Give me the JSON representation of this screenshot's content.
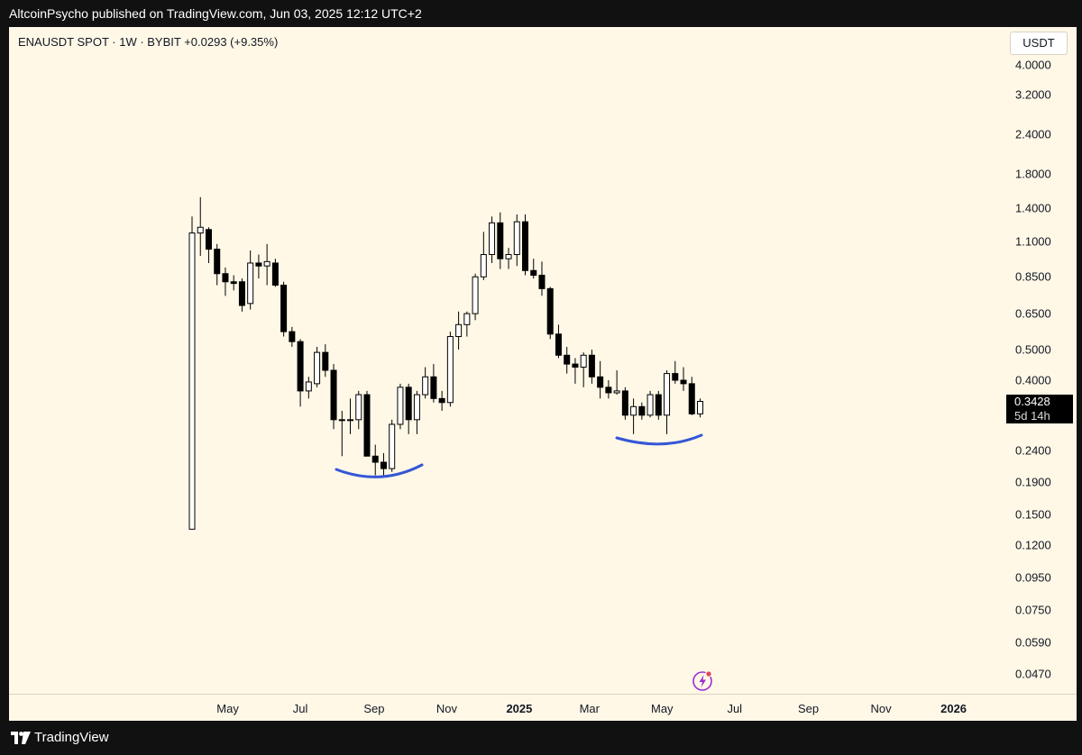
{
  "header": {
    "published": "AltcoinPsycho published on TradingView.com, Jun 03, 2025 12:12 UTC+2"
  },
  "legend": {
    "text": "ENAUSDT SPOT · 1W · BYBIT  +0.0293 (+9.35%)"
  },
  "price_axis": {
    "currency": "USDT"
  },
  "last_price": {
    "value": "0.3428",
    "countdown": "5d 14h"
  },
  "footer": {
    "brand": "TradingView"
  },
  "colors": {
    "background": "#fff8e7",
    "up_candle_fill": "#ffffff",
    "down_candle_fill": "#000000",
    "candle_outline": "#000000",
    "drawing": "#3557d6",
    "accent": "#9b2fd6"
  },
  "chart_data": {
    "type": "candlestick",
    "title": "ENAUSDT SPOT · 1W · BYBIT",
    "change": "+0.0293 (+9.35%)",
    "scale": "log",
    "y_ticks": [
      "4.0000",
      "3.2000",
      "2.4000",
      "1.8000",
      "1.4000",
      "1.1000",
      "0.8500",
      "0.6500",
      "0.5000",
      "0.4000",
      "0.2400",
      "0.1900",
      "0.1500",
      "0.1200",
      "0.0950",
      "0.0750",
      "0.0590",
      "0.0470"
    ],
    "x_ticks": [
      "May",
      "Jul",
      "Sep",
      "Nov",
      "2025",
      "Mar",
      "May",
      "Jul",
      "Sep",
      "Nov",
      "2026"
    ],
    "x_ticks_bold": [
      "2025",
      "2026"
    ],
    "x_range": [
      "2024-03-25",
      "2026-01-12"
    ],
    "ylim": [
      0.043,
      5.0
    ],
    "candles": [
      {
        "date": "2024-04-01",
        "open": 0.135,
        "high": 1.32,
        "low": 0.135,
        "close": 1.17
      },
      {
        "date": "2024-04-08",
        "open": 1.17,
        "high": 1.52,
        "low": 0.99,
        "close": 1.22
      },
      {
        "date": "2024-04-15",
        "open": 1.2,
        "high": 1.22,
        "low": 0.94,
        "close": 1.04
      },
      {
        "date": "2024-04-22",
        "open": 1.04,
        "high": 1.08,
        "low": 0.8,
        "close": 0.87
      },
      {
        "date": "2024-04-29",
        "open": 0.87,
        "high": 0.91,
        "low": 0.74,
        "close": 0.82
      },
      {
        "date": "2024-05-06",
        "open": 0.82,
        "high": 0.86,
        "low": 0.77,
        "close": 0.81
      },
      {
        "date": "2024-05-13",
        "open": 0.82,
        "high": 0.84,
        "low": 0.66,
        "close": 0.69
      },
      {
        "date": "2024-05-20",
        "open": 0.7,
        "high": 1.03,
        "low": 0.67,
        "close": 0.94
      },
      {
        "date": "2024-05-27",
        "open": 0.94,
        "high": 1.0,
        "low": 0.84,
        "close": 0.92
      },
      {
        "date": "2024-06-03",
        "open": 0.92,
        "high": 1.08,
        "low": 0.8,
        "close": 0.95
      },
      {
        "date": "2024-06-10",
        "open": 0.94,
        "high": 0.97,
        "low": 0.79,
        "close": 0.8
      },
      {
        "date": "2024-06-17",
        "open": 0.8,
        "high": 0.82,
        "low": 0.55,
        "close": 0.57
      },
      {
        "date": "2024-06-24",
        "open": 0.57,
        "high": 0.59,
        "low": 0.51,
        "close": 0.53
      },
      {
        "date": "2024-07-01",
        "open": 0.53,
        "high": 0.54,
        "low": 0.33,
        "close": 0.37
      },
      {
        "date": "2024-07-08",
        "open": 0.37,
        "high": 0.41,
        "low": 0.35,
        "close": 0.395
      },
      {
        "date": "2024-07-15",
        "open": 0.39,
        "high": 0.51,
        "low": 0.38,
        "close": 0.49
      },
      {
        "date": "2024-07-22",
        "open": 0.49,
        "high": 0.52,
        "low": 0.41,
        "close": 0.43
      },
      {
        "date": "2024-07-29",
        "open": 0.43,
        "high": 0.45,
        "low": 0.28,
        "close": 0.3
      },
      {
        "date": "2024-08-05",
        "open": 0.3,
        "high": 0.32,
        "low": 0.23,
        "close": 0.3
      },
      {
        "date": "2024-08-12",
        "open": 0.3,
        "high": 0.35,
        "low": 0.27,
        "close": 0.3
      },
      {
        "date": "2024-08-19",
        "open": 0.3,
        "high": 0.37,
        "low": 0.28,
        "close": 0.36
      },
      {
        "date": "2024-08-26",
        "open": 0.36,
        "high": 0.37,
        "low": 0.23,
        "close": 0.23
      },
      {
        "date": "2024-09-02",
        "open": 0.23,
        "high": 0.25,
        "low": 0.2,
        "close": 0.22
      },
      {
        "date": "2024-09-09",
        "open": 0.22,
        "high": 0.235,
        "low": 0.2,
        "close": 0.21
      },
      {
        "date": "2024-09-16",
        "open": 0.21,
        "high": 0.3,
        "low": 0.205,
        "close": 0.29
      },
      {
        "date": "2024-09-23",
        "open": 0.29,
        "high": 0.39,
        "low": 0.28,
        "close": 0.38
      },
      {
        "date": "2024-09-30",
        "open": 0.38,
        "high": 0.39,
        "low": 0.27,
        "close": 0.3
      },
      {
        "date": "2024-10-07",
        "open": 0.3,
        "high": 0.37,
        "low": 0.27,
        "close": 0.36
      },
      {
        "date": "2024-10-14",
        "open": 0.36,
        "high": 0.44,
        "low": 0.35,
        "close": 0.41
      },
      {
        "date": "2024-10-21",
        "open": 0.41,
        "high": 0.45,
        "low": 0.34,
        "close": 0.35
      },
      {
        "date": "2024-10-28",
        "open": 0.35,
        "high": 0.37,
        "low": 0.32,
        "close": 0.34
      },
      {
        "date": "2024-11-04",
        "open": 0.34,
        "high": 0.57,
        "low": 0.33,
        "close": 0.55
      },
      {
        "date": "2024-11-11",
        "open": 0.55,
        "high": 0.66,
        "low": 0.5,
        "close": 0.6
      },
      {
        "date": "2024-11-18",
        "open": 0.6,
        "high": 0.66,
        "low": 0.55,
        "close": 0.65
      },
      {
        "date": "2024-11-25",
        "open": 0.65,
        "high": 0.87,
        "low": 0.62,
        "close": 0.85
      },
      {
        "date": "2024-12-02",
        "open": 0.85,
        "high": 1.18,
        "low": 0.83,
        "close": 1.0
      },
      {
        "date": "2024-12-09",
        "open": 1.0,
        "high": 1.32,
        "low": 0.94,
        "close": 1.26
      },
      {
        "date": "2024-12-16",
        "open": 1.26,
        "high": 1.36,
        "low": 0.9,
        "close": 0.97
      },
      {
        "date": "2024-12-23",
        "open": 0.97,
        "high": 1.05,
        "low": 0.9,
        "close": 1.0
      },
      {
        "date": "2024-12-30",
        "open": 1.0,
        "high": 1.34,
        "low": 0.92,
        "close": 1.27
      },
      {
        "date": "2025-01-06",
        "open": 1.27,
        "high": 1.34,
        "low": 0.86,
        "close": 0.89
      },
      {
        "date": "2025-01-13",
        "open": 0.89,
        "high": 0.97,
        "low": 0.84,
        "close": 0.86
      },
      {
        "date": "2025-01-20",
        "open": 0.86,
        "high": 0.95,
        "low": 0.74,
        "close": 0.78
      },
      {
        "date": "2025-01-27",
        "open": 0.78,
        "high": 0.79,
        "low": 0.54,
        "close": 0.56
      },
      {
        "date": "2025-02-03",
        "open": 0.56,
        "high": 0.6,
        "low": 0.47,
        "close": 0.48
      },
      {
        "date": "2025-02-10",
        "open": 0.48,
        "high": 0.51,
        "low": 0.42,
        "close": 0.45
      },
      {
        "date": "2025-02-17",
        "open": 0.45,
        "high": 0.47,
        "low": 0.39,
        "close": 0.44
      },
      {
        "date": "2025-02-24",
        "open": 0.44,
        "high": 0.49,
        "low": 0.38,
        "close": 0.48
      },
      {
        "date": "2025-03-03",
        "open": 0.48,
        "high": 0.5,
        "low": 0.39,
        "close": 0.41
      },
      {
        "date": "2025-03-10",
        "open": 0.41,
        "high": 0.46,
        "low": 0.35,
        "close": 0.38
      },
      {
        "date": "2025-03-17",
        "open": 0.38,
        "high": 0.4,
        "low": 0.35,
        "close": 0.365
      },
      {
        "date": "2025-03-24",
        "open": 0.365,
        "high": 0.43,
        "low": 0.36,
        "close": 0.37
      },
      {
        "date": "2025-03-31",
        "open": 0.37,
        "high": 0.38,
        "low": 0.3,
        "close": 0.31
      },
      {
        "date": "2025-04-07",
        "open": 0.31,
        "high": 0.35,
        "low": 0.27,
        "close": 0.33
      },
      {
        "date": "2025-04-14",
        "open": 0.33,
        "high": 0.34,
        "low": 0.3,
        "close": 0.31
      },
      {
        "date": "2025-04-21",
        "open": 0.31,
        "high": 0.37,
        "low": 0.305,
        "close": 0.36
      },
      {
        "date": "2025-04-28",
        "open": 0.36,
        "high": 0.37,
        "low": 0.3,
        "close": 0.31
      },
      {
        "date": "2025-05-05",
        "open": 0.31,
        "high": 0.43,
        "low": 0.27,
        "close": 0.42
      },
      {
        "date": "2025-05-12",
        "open": 0.42,
        "high": 0.46,
        "low": 0.39,
        "close": 0.4
      },
      {
        "date": "2025-05-19",
        "open": 0.4,
        "high": 0.44,
        "low": 0.37,
        "close": 0.39
      },
      {
        "date": "2025-05-26",
        "open": 0.39,
        "high": 0.41,
        "low": 0.31,
        "close": 0.313
      },
      {
        "date": "2025-06-02",
        "open": 0.313,
        "high": 0.35,
        "low": 0.305,
        "close": 0.3428
      }
    ]
  }
}
